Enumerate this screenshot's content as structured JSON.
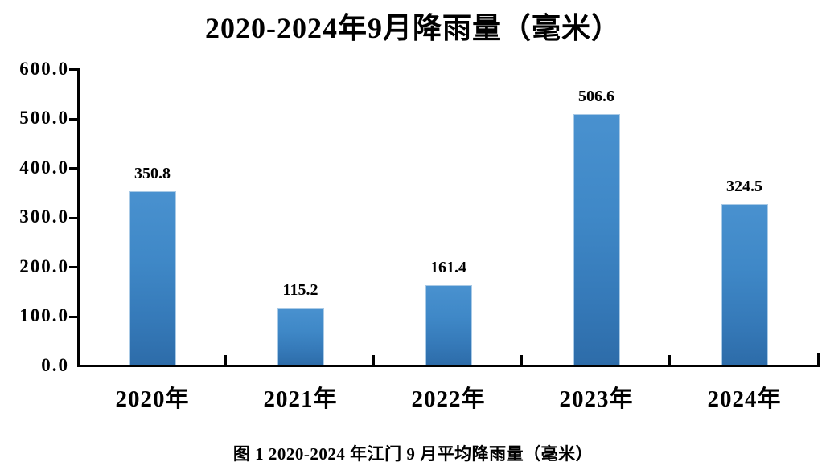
{
  "chart_data": {
    "type": "bar",
    "title": "2020-2024年9月降雨量（毫米）",
    "caption": "图 1 2020-2024 年江门 9 月平均降雨量（毫米）",
    "categories": [
      "2020年",
      "2021年",
      "2022年",
      "2023年",
      "2024年"
    ],
    "values": [
      350.8,
      115.2,
      161.4,
      506.6,
      324.5
    ],
    "value_labels": [
      "350.8",
      "115.2",
      "161.4",
      "506.6",
      "324.5"
    ],
    "xlabel": "",
    "ylabel": "",
    "ylim": [
      0,
      600
    ],
    "y_tick_step": 100,
    "y_tick_labels": [
      "0.0",
      "100.0",
      "200.0",
      "300.0",
      "400.0",
      "500.0",
      "600.0"
    ],
    "grid": false,
    "legend": "none",
    "colors": {
      "bar_top": "#4991cf",
      "bar_bottom": "#2d6ca9",
      "bar_edge": "#a9cae6",
      "axis": "#000000",
      "text": "#000000",
      "background": "#ffffff"
    }
  }
}
